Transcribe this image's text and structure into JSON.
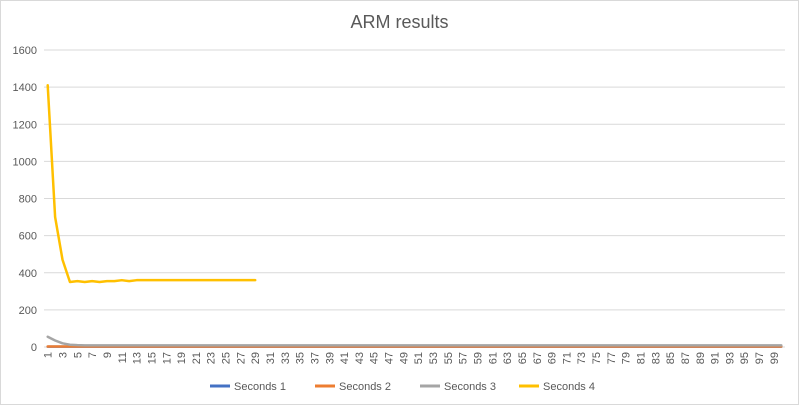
{
  "chart_data": {
    "type": "line",
    "title": "ARM results",
    "xlabel": "",
    "ylabel": "",
    "ylim": [
      0,
      1600
    ],
    "y_ticks": [
      0,
      200,
      400,
      600,
      800,
      1000,
      1200,
      1400,
      1600
    ],
    "x_categories": [
      1,
      2,
      3,
      4,
      5,
      6,
      7,
      8,
      9,
      10,
      11,
      12,
      13,
      14,
      15,
      16,
      17,
      18,
      19,
      20,
      21,
      22,
      23,
      24,
      25,
      26,
      27,
      28,
      29,
      30,
      31,
      32,
      33,
      34,
      35,
      36,
      37,
      38,
      39,
      40,
      41,
      42,
      43,
      44,
      45,
      46,
      47,
      48,
      49,
      50,
      51,
      52,
      53,
      54,
      55,
      56,
      57,
      58,
      59,
      60,
      61,
      62,
      63,
      64,
      65,
      66,
      67,
      68,
      69,
      70,
      71,
      72,
      73,
      74,
      75,
      76,
      77,
      78,
      79,
      80,
      81,
      82,
      83,
      84,
      85,
      86,
      87,
      88,
      89,
      90,
      91,
      92,
      93,
      94,
      95,
      96,
      97,
      98,
      99,
      100
    ],
    "x_tick_labels": [
      "1",
      "3",
      "5",
      "7",
      "9",
      "11",
      "13",
      "15",
      "17",
      "19",
      "21",
      "23",
      "25",
      "27",
      "29",
      "31",
      "33",
      "35",
      "37",
      "39",
      "41",
      "43",
      "45",
      "47",
      "49",
      "51",
      "53",
      "55",
      "57",
      "59",
      "61",
      "63",
      "65",
      "67",
      "69",
      "71",
      "73",
      "75",
      "77",
      "79",
      "81",
      "83",
      "85",
      "87",
      "89",
      "91",
      "93",
      "95",
      "97",
      "99"
    ],
    "grid": true,
    "legend": "bottom",
    "series": [
      {
        "name": "Seconds 1",
        "color": "#4472c4",
        "values": [
          2,
          2,
          2,
          2,
          2,
          2,
          2,
          2,
          2,
          2,
          2,
          2,
          2,
          2,
          2,
          2,
          2,
          2,
          2,
          2,
          2,
          2,
          2,
          2,
          2,
          2,
          2,
          2,
          2,
          2,
          2,
          2,
          2,
          2,
          2,
          2,
          2,
          2,
          2,
          2,
          2,
          2,
          2,
          2,
          2,
          2,
          2,
          2,
          2,
          2,
          2,
          2,
          2,
          2,
          2,
          2,
          2,
          2,
          2,
          2,
          2,
          2,
          2,
          2,
          2,
          2,
          2,
          2,
          2,
          2,
          2,
          2,
          2,
          2,
          2,
          2,
          2,
          2,
          2,
          2,
          2,
          2,
          2,
          2,
          2,
          2,
          2,
          2,
          2,
          2,
          2,
          2,
          2,
          2,
          2,
          2,
          2,
          2,
          2,
          2
        ]
      },
      {
        "name": "Seconds 2",
        "color": "#ed7d31",
        "values": [
          3,
          3,
          3,
          3,
          3,
          3,
          3,
          3,
          3,
          3,
          3,
          3,
          3,
          3,
          3,
          3,
          3,
          3,
          3,
          3,
          3,
          3,
          3,
          3,
          3,
          3,
          3,
          3,
          3,
          3,
          3,
          3,
          3,
          3,
          3,
          3,
          3,
          3,
          3,
          3,
          3,
          3,
          3,
          3,
          3,
          3,
          3,
          3,
          3,
          3,
          3,
          3,
          3,
          3,
          3,
          3,
          3,
          3,
          3,
          3,
          3,
          3,
          3,
          3,
          3,
          3,
          3,
          3,
          3,
          3,
          3,
          3,
          3,
          3,
          3,
          3,
          3,
          3,
          3,
          3,
          3,
          3,
          3,
          3,
          3,
          3,
          3,
          3,
          3,
          3,
          3,
          3,
          3,
          3,
          3,
          3,
          3,
          3,
          3,
          3
        ]
      },
      {
        "name": "Seconds 3",
        "color": "#a5a5a5",
        "values": [
          55,
          35,
          20,
          12,
          10,
          9,
          9,
          9,
          9,
          9,
          9,
          9,
          9,
          9,
          9,
          9,
          9,
          9,
          9,
          9,
          9,
          9,
          9,
          9,
          9,
          9,
          9,
          9,
          9,
          9,
          9,
          9,
          9,
          9,
          9,
          9,
          9,
          9,
          9,
          9,
          9,
          9,
          9,
          9,
          9,
          9,
          9,
          9,
          9,
          9,
          9,
          9,
          9,
          9,
          9,
          9,
          9,
          9,
          9,
          9,
          9,
          9,
          9,
          9,
          9,
          9,
          9,
          9,
          9,
          9,
          9,
          9,
          9,
          9,
          9,
          9,
          9,
          9,
          9,
          9,
          9,
          9,
          9,
          9,
          9,
          9,
          9,
          9,
          9,
          9,
          9,
          9,
          9,
          9,
          9,
          9,
          9,
          9,
          9,
          9
        ]
      },
      {
        "name": "Seconds 4",
        "color": "#ffc000",
        "values": [
          1410,
          700,
          470,
          350,
          355,
          350,
          355,
          350,
          355,
          355,
          360,
          355,
          360,
          360,
          360,
          360,
          360,
          360,
          360,
          360,
          360,
          360,
          360,
          360,
          360,
          360,
          360,
          360,
          360
        ]
      }
    ]
  }
}
